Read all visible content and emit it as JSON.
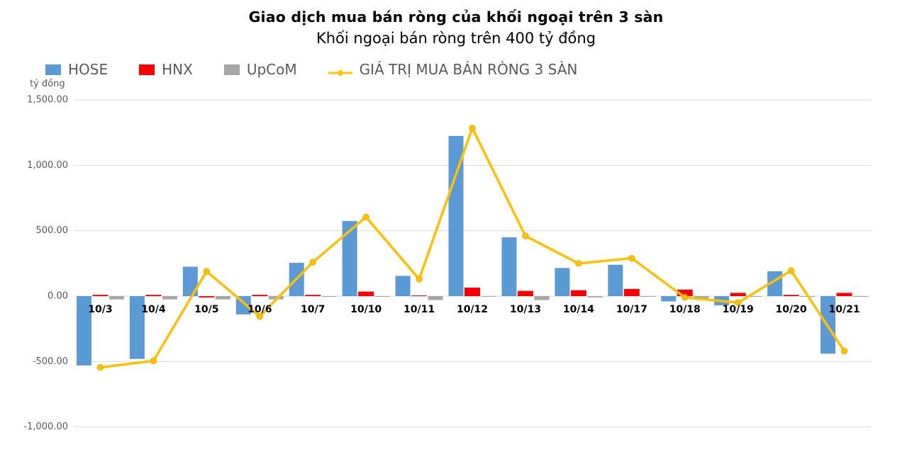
{
  "title": "Giao dịch mua bán ròng của khối ngoại trên 3 sàn",
  "subtitle": "Khối ngoại bán ròng trên 400 tỷ đồng",
  "legend": {
    "items": [
      {
        "label": "HOSE",
        "color": "#5B9BD5",
        "marker": "square"
      },
      {
        "label": "HNX",
        "color": "#FF0000",
        "marker": "square"
      },
      {
        "label": "UpCoM",
        "color": "#A6A6A6",
        "marker": "square"
      },
      {
        "label": "GIÁ TRỊ MUA BÁN RÒNG 3 SÀN",
        "color": "#FFC000",
        "marker": "line"
      }
    ]
  },
  "chart_data": {
    "type": "bar",
    "title": "Giao dịch mua bán ròng của khối ngoại trên 3 sàn",
    "subtitle": "Khối ngoại bán ròng trên 400 tỷ đồng",
    "ylabel": "tỷ đồng",
    "xlabel": "",
    "grid": true,
    "legend_position": "top-left",
    "ylim": [
      -1000,
      1500
    ],
    "yticks": [
      {
        "value": 1500,
        "label": "1,500.00"
      },
      {
        "value": 1000,
        "label": "1,000.00"
      },
      {
        "value": 500,
        "label": "500.00"
      },
      {
        "value": 0,
        "label": "0.00"
      },
      {
        "value": -500,
        "label": "-500.00"
      },
      {
        "value": -1000,
        "label": "-1,000.00"
      }
    ],
    "categories": [
      "10/3",
      "10/4",
      "10/5",
      "10/6",
      "10/7",
      "10/10",
      "10/11",
      "10/12",
      "10/13",
      "10/14",
      "10/17",
      "10/18",
      "10/19",
      "10/20",
      "10/21"
    ],
    "series": [
      {
        "name": "HOSE",
        "type": "bar",
        "color": "#5B9BD5",
        "values": [
          -530,
          -480,
          225,
          -140,
          255,
          575,
          155,
          1225,
          450,
          215,
          240,
          -40,
          -70,
          190,
          -440
        ]
      },
      {
        "name": "HNX",
        "type": "bar",
        "color": "#FF0000",
        "values": [
          10,
          10,
          -10,
          10,
          10,
          35,
          5,
          65,
          40,
          45,
          55,
          50,
          25,
          10,
          25
        ]
      },
      {
        "name": "UpCoM",
        "type": "bar",
        "color": "#A6A6A6",
        "values": [
          -25,
          -25,
          -25,
          -25,
          -5,
          -5,
          -30,
          -5,
          -30,
          -10,
          -5,
          -20,
          -5,
          -5,
          -5
        ]
      },
      {
        "name": "GIÁ TRỊ MUA BÁN RÒNG 3 SÀN",
        "type": "line",
        "color": "#FFC000",
        "values": [
          -545,
          -495,
          190,
          -155,
          260,
          605,
          130,
          1285,
          460,
          250,
          290,
          -10,
          -50,
          195,
          -420
        ]
      }
    ],
    "colors": {
      "gridline": "#D9D9D9",
      "axis_text": "#595959",
      "x_label_text": "#000000"
    }
  }
}
